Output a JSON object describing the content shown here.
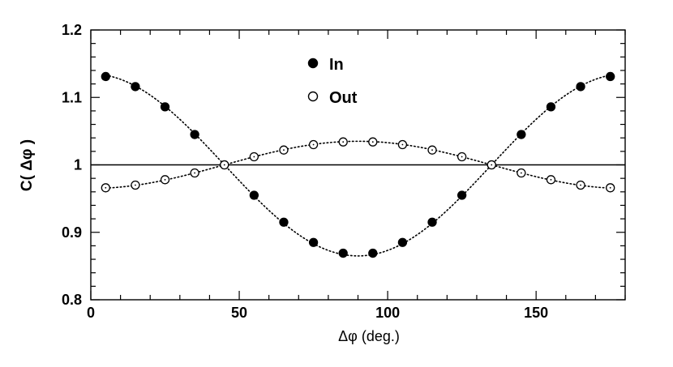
{
  "chart_data": {
    "type": "scatter",
    "xlabel": "Δφ (deg.)",
    "ylabel": "C( Δφ )",
    "xlim": [
      0,
      180
    ],
    "ylim": [
      0.8,
      1.2
    ],
    "x_ticks": [
      0,
      50,
      100,
      150
    ],
    "x_tick_labels": [
      "0",
      "50",
      "100",
      "150"
    ],
    "y_ticks": [
      0.8,
      0.9,
      1.0,
      1.1,
      1.2
    ],
    "y_tick_labels": [
      "0.8",
      "0.9",
      "1",
      "1.1",
      "1.2"
    ],
    "reference_line": 1.0,
    "legend_placement": "top-center",
    "x": [
      5,
      15,
      25,
      35,
      45,
      55,
      65,
      75,
      85,
      95,
      105,
      115,
      125,
      135,
      145,
      155,
      165,
      175
    ],
    "series": [
      {
        "name": "In",
        "marker": "filled-circle",
        "values": [
          1.131,
          1.116,
          1.086,
          1.045,
          1.0,
          0.955,
          0.915,
          0.885,
          0.869,
          0.869,
          0.885,
          0.915,
          0.955,
          1.0,
          1.045,
          1.086,
          1.116,
          1.131
        ],
        "fit": {
          "form": "cos2",
          "offset": 1.0,
          "amplitude": 0.135
        }
      },
      {
        "name": "Out",
        "marker": "open-circle",
        "values": [
          0.966,
          0.97,
          0.978,
          0.988,
          1.0,
          1.012,
          1.022,
          1.03,
          1.034,
          1.034,
          1.03,
          1.022,
          1.012,
          1.0,
          0.988,
          0.978,
          0.97,
          0.966
        ],
        "fit": {
          "form": "cos2",
          "offset": 1.0,
          "amplitude": -0.035
        }
      }
    ]
  }
}
